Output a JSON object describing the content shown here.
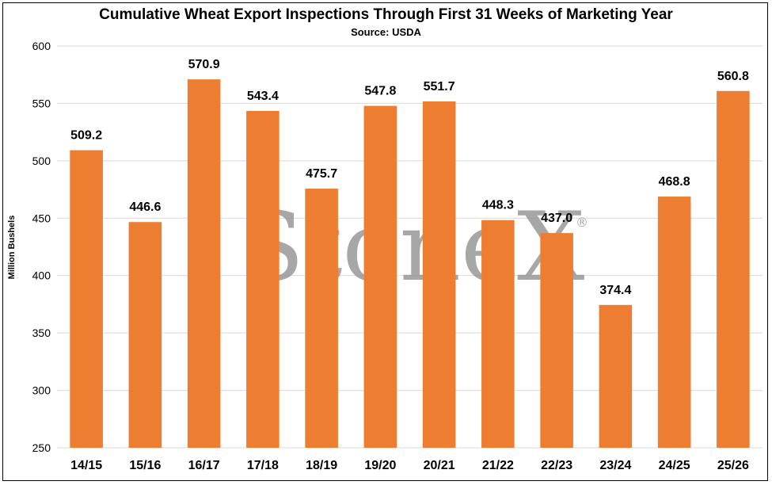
{
  "chart_data": {
    "type": "bar",
    "title": "Cumulative Wheat Export Inspections Through First 31 Weeks of Marketing Year",
    "subtitle": "Source: USDA",
    "xlabel": "",
    "ylabel": "Million Bushels",
    "ylim": [
      250,
      600
    ],
    "yticks": [
      250,
      300,
      350,
      400,
      450,
      500,
      550,
      600
    ],
    "grid": true,
    "legend": "none",
    "categories": [
      "14/15",
      "15/16",
      "16/17",
      "17/18",
      "18/19",
      "19/20",
      "20/21",
      "21/22",
      "22/23",
      "23/24",
      "24/25",
      "25/26"
    ],
    "values": [
      509.2,
      446.6,
      570.9,
      543.4,
      475.7,
      547.8,
      551.7,
      448.3,
      437.0,
      374.4,
      468.8,
      560.8
    ],
    "data_labels": [
      "509.2",
      "446.6",
      "570.9",
      "543.4",
      "475.7",
      "547.8",
      "551.7",
      "448.3",
      "437.0",
      "374.4",
      "468.8",
      "560.8"
    ],
    "bar_color": "#ED7D31",
    "grid_color": "#D9D9D9"
  },
  "watermark": {
    "text": "StoneX",
    "mark": "®"
  }
}
